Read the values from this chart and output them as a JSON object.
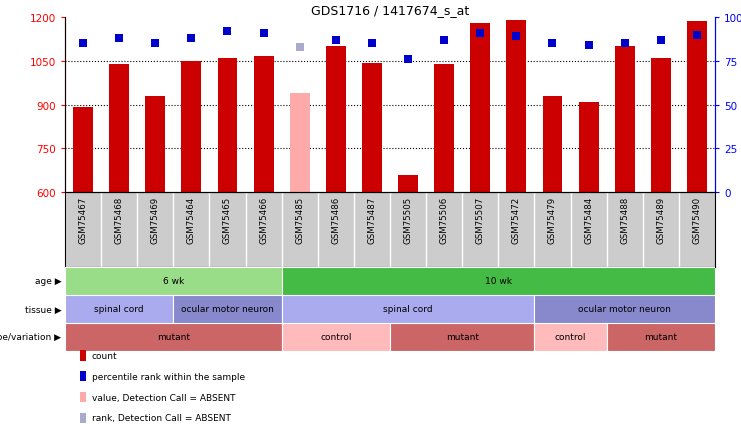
{
  "title": "GDS1716 / 1417674_s_at",
  "samples": [
    "GSM75467",
    "GSM75468",
    "GSM75469",
    "GSM75464",
    "GSM75465",
    "GSM75466",
    "GSM75485",
    "GSM75486",
    "GSM75487",
    "GSM75505",
    "GSM75506",
    "GSM75507",
    "GSM75472",
    "GSM75479",
    "GSM75484",
    "GSM75488",
    "GSM75489",
    "GSM75490"
  ],
  "counts": [
    893,
    1040,
    930,
    1050,
    1060,
    1065,
    600,
    1100,
    1043,
    660,
    1040,
    1180,
    1190,
    930,
    907,
    1100,
    1058,
    1185
  ],
  "absent_bar": [
    null,
    null,
    null,
    null,
    null,
    null,
    940,
    null,
    null,
    null,
    null,
    null,
    null,
    null,
    null,
    null,
    null,
    null
  ],
  "percentile_ranks": [
    85,
    88,
    85,
    88,
    92,
    91,
    null,
    87,
    85,
    76,
    87,
    91,
    89,
    85,
    84,
    85,
    87,
    90
  ],
  "absent_rank": [
    null,
    null,
    null,
    null,
    null,
    null,
    83,
    null,
    null,
    null,
    null,
    null,
    null,
    null,
    null,
    null,
    null,
    null
  ],
  "ylim_left": [
    600,
    1200
  ],
  "yticks_left": [
    600,
    750,
    900,
    1050,
    1200
  ],
  "ylim_right": [
    0,
    100
  ],
  "yticks_right": [
    0,
    25,
    50,
    75,
    100
  ],
  "bar_color": "#cc0000",
  "bar_absent_color": "#ffaaaa",
  "rank_color": "#0000cc",
  "rank_absent_color": "#aaaacc",
  "rank_marker_size": 28,
  "age_groups": [
    {
      "label": "6 wk",
      "start": 0,
      "end": 6,
      "color": "#99dd88"
    },
    {
      "label": "10 wk",
      "start": 6,
      "end": 18,
      "color": "#44bb44"
    }
  ],
  "tissue_groups": [
    {
      "label": "spinal cord",
      "start": 0,
      "end": 3,
      "color": "#aaaaee"
    },
    {
      "label": "ocular motor neuron",
      "start": 3,
      "end": 6,
      "color": "#8888cc"
    },
    {
      "label": "spinal cord",
      "start": 6,
      "end": 13,
      "color": "#aaaaee"
    },
    {
      "label": "ocular motor neuron",
      "start": 13,
      "end": 18,
      "color": "#8888cc"
    }
  ],
  "genotype_groups": [
    {
      "label": "mutant",
      "start": 0,
      "end": 6,
      "color": "#cc6666"
    },
    {
      "label": "control",
      "start": 6,
      "end": 9,
      "color": "#ffbbbb"
    },
    {
      "label": "mutant",
      "start": 9,
      "end": 13,
      "color": "#cc6666"
    },
    {
      "label": "control",
      "start": 13,
      "end": 15,
      "color": "#ffbbbb"
    },
    {
      "label": "mutant",
      "start": 15,
      "end": 18,
      "color": "#cc6666"
    }
  ],
  "legend_items": [
    {
      "label": "count",
      "color": "#cc0000"
    },
    {
      "label": "percentile rank within the sample",
      "color": "#0000cc"
    },
    {
      "label": "value, Detection Call = ABSENT",
      "color": "#ffaaaa"
    },
    {
      "label": "rank, Detection Call = ABSENT",
      "color": "#aaaacc"
    }
  ],
  "background_color": "#ffffff",
  "plot_bg": "#ffffff",
  "xtick_bg": "#cccccc"
}
